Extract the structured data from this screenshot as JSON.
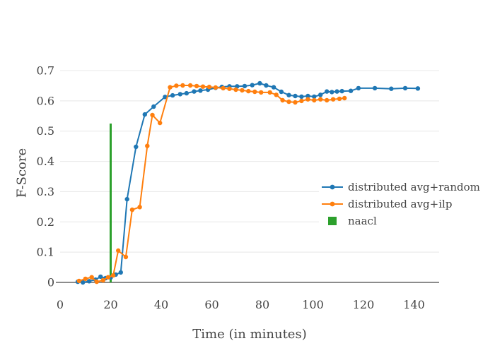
{
  "chart_data": {
    "type": "line",
    "title": "",
    "xlabel": "Time (in minutes)",
    "ylabel": "F-Score",
    "xlim": [
      0,
      150
    ],
    "ylim": [
      0,
      0.7
    ],
    "x_ticks": [
      0,
      20,
      40,
      60,
      80,
      100,
      120,
      140
    ],
    "y_ticks": [
      0,
      0.1,
      0.2,
      0.3,
      0.4,
      0.5,
      0.6,
      0.7
    ],
    "grid": "horizontal-only",
    "legend_position": "middle-right",
    "colors": {
      "text": "#444444",
      "gridline": "#e8e8e8",
      "zeroline": "#666666",
      "background": "#ffffff"
    },
    "series": [
      {
        "name": "distributed avg+random",
        "color": "#1f77b4",
        "marker": "circle",
        "x": [
          7,
          9,
          11.5,
          14,
          16,
          18,
          20,
          22,
          24,
          26.5,
          30,
          33.5,
          37,
          41.5,
          44.5,
          47.5,
          50,
          53,
          55.5,
          58.5,
          61.5,
          64,
          67,
          70,
          73,
          76,
          79,
          81.5,
          84.5,
          87.5,
          90.5,
          93,
          95.5,
          98,
          100.5,
          103,
          105.5,
          107.5,
          109.5,
          111.5,
          115,
          118,
          124.5,
          131,
          136.5,
          141.5
        ],
        "y": [
          0.002,
          0.0,
          0.004,
          0.009,
          0.019,
          0.014,
          0.016,
          0.026,
          0.033,
          0.275,
          0.448,
          0.555,
          0.581,
          0.613,
          0.618,
          0.622,
          0.625,
          0.631,
          0.634,
          0.637,
          0.643,
          0.646,
          0.648,
          0.648,
          0.649,
          0.652,
          0.658,
          0.651,
          0.645,
          0.63,
          0.619,
          0.616,
          0.614,
          0.616,
          0.614,
          0.62,
          0.631,
          0.629,
          0.631,
          0.632,
          0.633,
          0.642,
          0.642,
          0.64,
          0.642,
          0.641
        ]
      },
      {
        "name": "distributed avg+ilp",
        "color": "#ff7f0e",
        "marker": "circle",
        "x": [
          7.5,
          10,
          12.5,
          14.5,
          17,
          19,
          21,
          23,
          26,
          28.5,
          31.5,
          34.5,
          36.5,
          39.5,
          43.5,
          46,
          48.5,
          51.5,
          54,
          56.5,
          59,
          61.5,
          64.5,
          67,
          69.5,
          72,
          74.5,
          77,
          79.5,
          83,
          85.5,
          88,
          90.5,
          93,
          95.5,
          98,
          100.5,
          103,
          105.5,
          108,
          110.5,
          112.5
        ],
        "y": [
          0.005,
          0.012,
          0.017,
          0.002,
          0.007,
          0.017,
          0.023,
          0.105,
          0.084,
          0.24,
          0.249,
          0.451,
          0.553,
          0.527,
          0.645,
          0.65,
          0.651,
          0.651,
          0.649,
          0.647,
          0.646,
          0.644,
          0.642,
          0.64,
          0.637,
          0.635,
          0.632,
          0.63,
          0.628,
          0.628,
          0.62,
          0.602,
          0.597,
          0.595,
          0.6,
          0.605,
          0.602,
          0.605,
          0.602,
          0.605,
          0.607,
          0.609
        ]
      }
    ],
    "vline": {
      "name": "naacl",
      "color": "#2ca02c",
      "x": 20,
      "y_from": 0,
      "y_to": 0.525,
      "stroke_width": 3
    }
  },
  "legend": {
    "items": [
      {
        "label": "distributed avg+random",
        "symbol": "line-with-marker",
        "color": "#1f77b4"
      },
      {
        "label": "distributed avg+ilp",
        "symbol": "line-with-marker",
        "color": "#ff7f0e"
      },
      {
        "label": "naacl",
        "symbol": "filled-square",
        "color": "#2ca02c"
      }
    ]
  }
}
